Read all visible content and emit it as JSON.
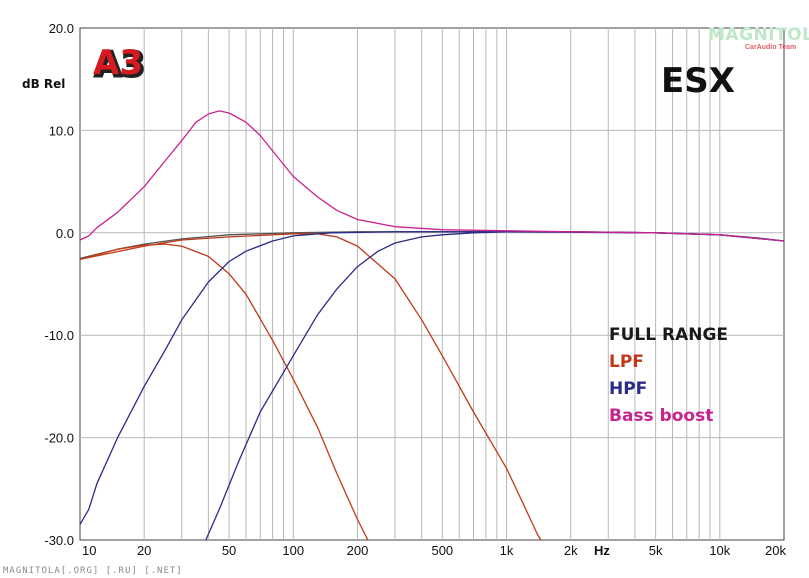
{
  "chart_data": {
    "type": "line",
    "title": "ESX",
    "ylabel": "dB Rel",
    "xlabel": "",
    "x_unit_label": "Hz",
    "xscale": "log",
    "xlim": [
      10,
      20000
    ],
    "ylim": [
      -30,
      20
    ],
    "grid": true,
    "legend_position": "right",
    "x_tick_labels": [
      {
        "value": 10,
        "label": "10"
      },
      {
        "value": 20,
        "label": "20"
      },
      {
        "value": 50,
        "label": "50"
      },
      {
        "value": 100,
        "label": "100"
      },
      {
        "value": 200,
        "label": "200"
      },
      {
        "value": 500,
        "label": "500"
      },
      {
        "value": 1000,
        "label": "1k"
      },
      {
        "value": 2000,
        "label": "2k"
      },
      {
        "value": 5000,
        "label": "5k"
      },
      {
        "value": 10000,
        "label": "10k"
      },
      {
        "value": 20000,
        "label": "20k"
      }
    ],
    "y_tick_labels": [
      {
        "value": 20,
        "label": "20.0"
      },
      {
        "value": 10,
        "label": "10.0"
      },
      {
        "value": 0,
        "label": "0.0"
      },
      {
        "value": -10,
        "label": "-10.0"
      },
      {
        "value": -20,
        "label": "-20.0"
      },
      {
        "value": -30,
        "label": "-30.0"
      }
    ],
    "series": [
      {
        "name": "FULL RANGE",
        "color": "#555555",
        "points": [
          [
            10,
            -2.5
          ],
          [
            15,
            -1.6
          ],
          [
            20,
            -1.1
          ],
          [
            30,
            -0.6
          ],
          [
            50,
            -0.2
          ],
          [
            100,
            0
          ],
          [
            200,
            0.1
          ],
          [
            500,
            0.1
          ],
          [
            1000,
            0.1
          ],
          [
            2000,
            0.1
          ],
          [
            5000,
            0
          ],
          [
            10000,
            -0.2
          ],
          [
            15000,
            -0.5
          ],
          [
            20000,
            -0.8
          ]
        ]
      },
      {
        "name": "LPF",
        "color": "#c0391b",
        "points": [
          [
            10,
            -2.6
          ],
          [
            15,
            -1.6
          ],
          [
            20,
            -1.2
          ],
          [
            25,
            -1.1
          ],
          [
            30,
            -1.3
          ],
          [
            40,
            -2.3
          ],
          [
            50,
            -4
          ],
          [
            60,
            -6
          ],
          [
            80,
            -10.5
          ],
          [
            100,
            -14.3
          ],
          [
            130,
            -19
          ],
          [
            160,
            -23.5
          ],
          [
            200,
            -28
          ],
          [
            230,
            -30.5
          ]
        ]
      },
      {
        "name": "LPF",
        "color": "#c0391b",
        "points": [
          [
            10,
            -2.6
          ],
          [
            20,
            -1.3
          ],
          [
            30,
            -0.7
          ],
          [
            50,
            -0.4
          ],
          [
            80,
            -0.2
          ],
          [
            100,
            -0.1
          ],
          [
            130,
            -0.1
          ],
          [
            160,
            -0.4
          ],
          [
            200,
            -1.3
          ],
          [
            300,
            -4.5
          ],
          [
            400,
            -8.5
          ],
          [
            500,
            -12
          ],
          [
            700,
            -17.5
          ],
          [
            1000,
            -23
          ],
          [
            1200,
            -26.5
          ],
          [
            1400,
            -29.5
          ],
          [
            1500,
            -30.5
          ]
        ]
      },
      {
        "name": "HPF",
        "color": "#2b2b88",
        "points": [
          [
            10,
            -28.5
          ],
          [
            11,
            -27
          ],
          [
            12,
            -24.5
          ],
          [
            15,
            -20
          ],
          [
            20,
            -15
          ],
          [
            25,
            -11.5
          ],
          [
            30,
            -8.5
          ],
          [
            40,
            -4.8
          ],
          [
            50,
            -2.8
          ],
          [
            60,
            -1.8
          ],
          [
            80,
            -0.8
          ],
          [
            100,
            -0.3
          ],
          [
            150,
            0
          ],
          [
            300,
            0.1
          ],
          [
            1000,
            0.1
          ],
          [
            5000,
            0
          ],
          [
            10000,
            -0.2
          ],
          [
            20000,
            -0.8
          ]
        ]
      },
      {
        "name": "HPF",
        "color": "#2b2b88",
        "points": [
          [
            38,
            -30.5
          ],
          [
            45,
            -27
          ],
          [
            55,
            -22.5
          ],
          [
            70,
            -17.5
          ],
          [
            100,
            -12
          ],
          [
            130,
            -8
          ],
          [
            160,
            -5.5
          ],
          [
            200,
            -3.3
          ],
          [
            250,
            -1.8
          ],
          [
            300,
            -1
          ],
          [
            400,
            -0.4
          ],
          [
            500,
            -0.2
          ],
          [
            700,
            0
          ],
          [
            1000,
            0.1
          ],
          [
            2000,
            0.1
          ],
          [
            5000,
            0
          ],
          [
            10000,
            -0.2
          ],
          [
            20000,
            -0.8
          ]
        ]
      },
      {
        "name": "Bass boost",
        "color": "#c8238f",
        "points": [
          [
            10,
            -0.7
          ],
          [
            11,
            -0.3
          ],
          [
            12,
            0.5
          ],
          [
            15,
            2
          ],
          [
            20,
            4.5
          ],
          [
            25,
            7
          ],
          [
            30,
            9
          ],
          [
            35,
            10.8
          ],
          [
            40,
            11.6
          ],
          [
            45,
            11.9
          ],
          [
            50,
            11.7
          ],
          [
            60,
            10.8
          ],
          [
            70,
            9.5
          ],
          [
            80,
            8
          ],
          [
            100,
            5.5
          ],
          [
            130,
            3.5
          ],
          [
            160,
            2.2
          ],
          [
            200,
            1.3
          ],
          [
            300,
            0.6
          ],
          [
            500,
            0.3
          ],
          [
            1000,
            0.2
          ],
          [
            2000,
            0.1
          ],
          [
            5000,
            0
          ],
          [
            10000,
            -0.2
          ],
          [
            20000,
            -0.8
          ]
        ]
      }
    ]
  },
  "logo": {
    "text": "A3"
  },
  "watermarks": {
    "top_right": "MAGNITOLA",
    "top_right_sub": "CarAudio Team",
    "bottom_left": "MAGNITOLA[.ORG] [.RU] [.NET]"
  },
  "legend": [
    {
      "label": "FULL RANGE",
      "color": "#1a1a1a"
    },
    {
      "label": "LPF",
      "color": "#c0391b"
    },
    {
      "label": "HPF",
      "color": "#2b2b88"
    },
    {
      "label": "Bass boost",
      "color": "#c8238f"
    }
  ]
}
